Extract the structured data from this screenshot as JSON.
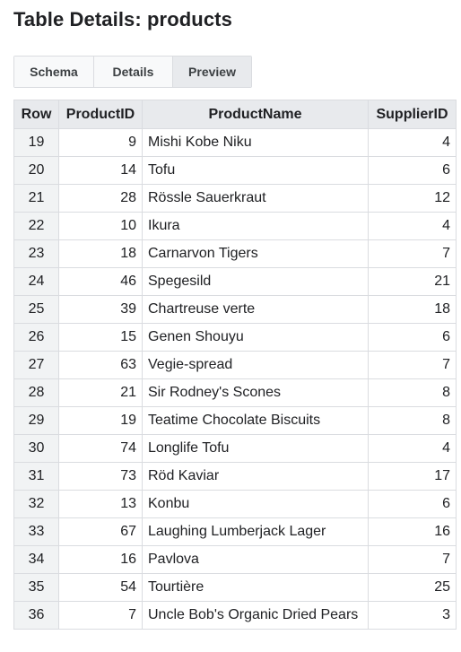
{
  "page": {
    "title": "Table Details: products"
  },
  "tabs": [
    {
      "label": "Schema",
      "active": false
    },
    {
      "label": "Details",
      "active": false
    },
    {
      "label": "Preview",
      "active": true
    }
  ],
  "table": {
    "columns": [
      "Row",
      "ProductID",
      "ProductName",
      "SupplierID"
    ],
    "rows": [
      {
        "row": "19",
        "product_id": "9",
        "product_name": "Mishi Kobe Niku",
        "supplier_id": "4"
      },
      {
        "row": "20",
        "product_id": "14",
        "product_name": "Tofu",
        "supplier_id": "6"
      },
      {
        "row": "21",
        "product_id": "28",
        "product_name": "Rössle Sauerkraut",
        "supplier_id": "12"
      },
      {
        "row": "22",
        "product_id": "10",
        "product_name": "Ikura",
        "supplier_id": "4"
      },
      {
        "row": "23",
        "product_id": "18",
        "product_name": "Carnarvon Tigers",
        "supplier_id": "7"
      },
      {
        "row": "24",
        "product_id": "46",
        "product_name": "Spegesild",
        "supplier_id": "21"
      },
      {
        "row": "25",
        "product_id": "39",
        "product_name": "Chartreuse verte",
        "supplier_id": "18"
      },
      {
        "row": "26",
        "product_id": "15",
        "product_name": "Genen Shouyu",
        "supplier_id": "6"
      },
      {
        "row": "27",
        "product_id": "63",
        "product_name": "Vegie-spread",
        "supplier_id": "7"
      },
      {
        "row": "28",
        "product_id": "21",
        "product_name": "Sir Rodney's Scones",
        "supplier_id": "8"
      },
      {
        "row": "29",
        "product_id": "19",
        "product_name": "Teatime Chocolate Biscuits",
        "supplier_id": "8"
      },
      {
        "row": "30",
        "product_id": "74",
        "product_name": "Longlife Tofu",
        "supplier_id": "4"
      },
      {
        "row": "31",
        "product_id": "73",
        "product_name": "Röd Kaviar",
        "supplier_id": "17"
      },
      {
        "row": "32",
        "product_id": "13",
        "product_name": "Konbu",
        "supplier_id": "6"
      },
      {
        "row": "33",
        "product_id": "67",
        "product_name": "Laughing Lumberjack Lager",
        "supplier_id": "16"
      },
      {
        "row": "34",
        "product_id": "16",
        "product_name": "Pavlova",
        "supplier_id": "7"
      },
      {
        "row": "35",
        "product_id": "54",
        "product_name": "Tourtière",
        "supplier_id": "25"
      },
      {
        "row": "36",
        "product_id": "7",
        "product_name": "Uncle Bob's Organic Dried Pears",
        "supplier_id": "3"
      }
    ]
  }
}
